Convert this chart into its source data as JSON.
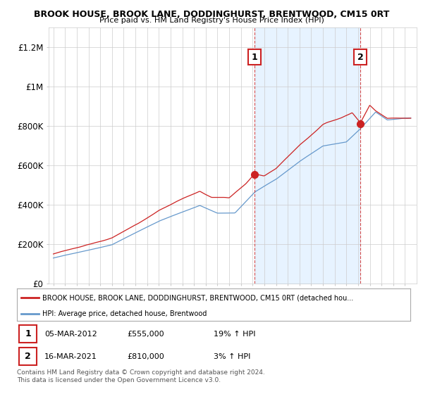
{
  "title1": "BROOK HOUSE, BROOK LANE, DODDINGHURST, BRENTWOOD, CM15 0RT",
  "title2": "Price paid vs. HM Land Registry's House Price Index (HPI)",
  "ylim": [
    0,
    1300000
  ],
  "yticks": [
    0,
    200000,
    400000,
    600000,
    800000,
    1000000,
    1200000
  ],
  "ytick_labels": [
    "£0",
    "£200K",
    "£400K",
    "£600K",
    "£800K",
    "£1M",
    "£1.2M"
  ],
  "xticks": [
    1995,
    1996,
    1997,
    1998,
    1999,
    2000,
    2001,
    2002,
    2003,
    2004,
    2005,
    2006,
    2007,
    2008,
    2009,
    2010,
    2011,
    2012,
    2013,
    2014,
    2015,
    2016,
    2017,
    2018,
    2019,
    2020,
    2021,
    2022,
    2023,
    2024,
    2025
  ],
  "hpi_color": "#6699cc",
  "price_color": "#cc2222",
  "shade_color": "#ddeeff",
  "sale1_year": 2012.17,
  "sale1_price": 555000,
  "sale1_label": "1",
  "sale2_year": 2021.2,
  "sale2_price": 810000,
  "sale2_label": "2",
  "legend_line1": "BROOK HOUSE, BROOK LANE, DODDINGHURST, BRENTWOOD, CM15 0RT (detached hou...",
  "legend_line2": "HPI: Average price, detached house, Brentwood",
  "annotation1_date": "05-MAR-2012",
  "annotation1_price": "£555,000",
  "annotation1_pct": "19% ↑ HPI",
  "annotation2_date": "16-MAR-2021",
  "annotation2_price": "£810,000",
  "annotation2_pct": "3% ↑ HPI",
  "footer": "Contains HM Land Registry data © Crown copyright and database right 2024.\nThis data is licensed under the Open Government Licence v3.0.",
  "bg_color": "#ffffff",
  "grid_color": "#cccccc"
}
